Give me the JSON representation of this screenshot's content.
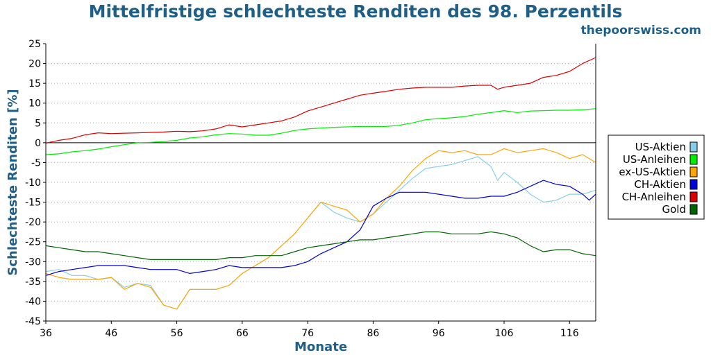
{
  "header": {
    "title": "Mittelfristige schlechteste Renditen des 98. Perzentils",
    "site": "thepoorswiss.com"
  },
  "chart_data": {
    "type": "line",
    "title": "Mittelfristige schlechteste Renditen des 98. Perzentils",
    "xlabel": "Monate",
    "ylabel": "Schlechteste Renditen [%]",
    "xlim": [
      36,
      120
    ],
    "ylim": [
      -45,
      25
    ],
    "x_ticks": [
      36,
      46,
      56,
      66,
      76,
      86,
      96,
      106,
      116
    ],
    "y_ticks": [
      25,
      20,
      15,
      10,
      5,
      0,
      -5,
      -10,
      -15,
      -20,
      -25,
      -30,
      -35,
      -40,
      -45
    ],
    "x_tick_labels": [
      "36",
      "46",
      "56",
      "66",
      "76",
      "86",
      "96",
      "106",
      "116"
    ],
    "y_tick_labels": [
      "25",
      "20",
      "15",
      "10",
      "5",
      "0",
      "-5",
      "-10",
      "-15",
      "-20",
      "-25",
      "-30",
      "-35",
      "-40",
      "-45"
    ],
    "grid": "horizontal dotted",
    "legend_position": "right",
    "series": [
      {
        "name": "US-Aktien",
        "color": "#87ceeb",
        "points": [
          [
            36,
            -32.5
          ],
          [
            38,
            -32
          ],
          [
            40,
            -33.5
          ],
          [
            42,
            -33.5
          ],
          [
            44,
            -34.5
          ],
          [
            46,
            -34
          ],
          [
            48,
            -36.5
          ],
          [
            50,
            -35.5
          ],
          [
            52,
            -36
          ],
          [
            54,
            -41
          ],
          [
            56,
            -42
          ],
          [
            58,
            -37
          ],
          [
            60,
            -37
          ],
          [
            62,
            -37
          ],
          [
            64,
            -36
          ],
          [
            66,
            -33
          ],
          [
            68,
            -31
          ],
          [
            70,
            -29
          ],
          [
            72,
            -26
          ],
          [
            74,
            -23
          ],
          [
            76,
            -19
          ],
          [
            78,
            -15
          ],
          [
            80,
            -17.5
          ],
          [
            82,
            -19
          ],
          [
            84,
            -20
          ],
          [
            86,
            -18
          ],
          [
            88,
            -15
          ],
          [
            90,
            -12
          ],
          [
            92,
            -9
          ],
          [
            94,
            -6.5
          ],
          [
            96,
            -6
          ],
          [
            98,
            -5.5
          ],
          [
            100,
            -4.5
          ],
          [
            102,
            -3.5
          ],
          [
            104,
            -6
          ],
          [
            105,
            -9.5
          ],
          [
            106,
            -7.5
          ],
          [
            108,
            -10
          ],
          [
            110,
            -13
          ],
          [
            112,
            -15
          ],
          [
            114,
            -14.5
          ],
          [
            116,
            -13
          ],
          [
            118,
            -13
          ],
          [
            120,
            -12
          ]
        ]
      },
      {
        "name": "US-Anleihen",
        "color": "#00ee00",
        "points": [
          [
            36,
            -3
          ],
          [
            38,
            -2.8
          ],
          [
            40,
            -2.3
          ],
          [
            42,
            -2
          ],
          [
            44,
            -1.6
          ],
          [
            46,
            -1
          ],
          [
            48,
            -0.5
          ],
          [
            50,
            0
          ],
          [
            52,
            0.1
          ],
          [
            54,
            0.3
          ],
          [
            56,
            0.6
          ],
          [
            58,
            1.2
          ],
          [
            60,
            1.5
          ],
          [
            62,
            2
          ],
          [
            64,
            2.3
          ],
          [
            66,
            2.2
          ],
          [
            68,
            1.9
          ],
          [
            70,
            1.9
          ],
          [
            72,
            2.4
          ],
          [
            74,
            3.1
          ],
          [
            76,
            3.5
          ],
          [
            78,
            3.7
          ],
          [
            80,
            3.9
          ],
          [
            82,
            4
          ],
          [
            84,
            4.1
          ],
          [
            86,
            4.1
          ],
          [
            88,
            4.1
          ],
          [
            90,
            4.4
          ],
          [
            92,
            5
          ],
          [
            94,
            5.8
          ],
          [
            96,
            6.1
          ],
          [
            98,
            6.3
          ],
          [
            100,
            6.6
          ],
          [
            102,
            7.2
          ],
          [
            104,
            7.6
          ],
          [
            106,
            8.1
          ],
          [
            108,
            7.6
          ],
          [
            110,
            8
          ],
          [
            112,
            8.1
          ],
          [
            114,
            8.2
          ],
          [
            116,
            8.2
          ],
          [
            118,
            8.3
          ],
          [
            120,
            8.6
          ]
        ]
      },
      {
        "name": "ex-US-Aktien",
        "color": "#ffa500",
        "points": [
          [
            36,
            -33
          ],
          [
            38,
            -34
          ],
          [
            40,
            -34.5
          ],
          [
            42,
            -34.5
          ],
          [
            44,
            -34.5
          ],
          [
            46,
            -34
          ],
          [
            48,
            -37
          ],
          [
            50,
            -35.5
          ],
          [
            52,
            -36.5
          ],
          [
            54,
            -41
          ],
          [
            56,
            -42
          ],
          [
            58,
            -37
          ],
          [
            60,
            -37
          ],
          [
            62,
            -37
          ],
          [
            64,
            -36
          ],
          [
            66,
            -33
          ],
          [
            68,
            -31
          ],
          [
            70,
            -29
          ],
          [
            72,
            -26
          ],
          [
            74,
            -23
          ],
          [
            76,
            -19
          ],
          [
            78,
            -15
          ],
          [
            80,
            -16
          ],
          [
            82,
            -17
          ],
          [
            84,
            -20
          ],
          [
            86,
            -18
          ],
          [
            88,
            -14
          ],
          [
            90,
            -11
          ],
          [
            92,
            -7
          ],
          [
            94,
            -4
          ],
          [
            96,
            -2
          ],
          [
            98,
            -2.5
          ],
          [
            100,
            -2
          ],
          [
            102,
            -3
          ],
          [
            104,
            -3
          ],
          [
            106,
            -1.5
          ],
          [
            108,
            -2.5
          ],
          [
            110,
            -2
          ],
          [
            112,
            -1.5
          ],
          [
            114,
            -2.5
          ],
          [
            116,
            -4
          ],
          [
            118,
            -3
          ],
          [
            120,
            -5
          ]
        ]
      },
      {
        "name": "CH-Aktien",
        "color": "#0000dd",
        "points": [
          [
            36,
            -33.5
          ],
          [
            38,
            -32.5
          ],
          [
            40,
            -32
          ],
          [
            42,
            -31.5
          ],
          [
            44,
            -31
          ],
          [
            46,
            -31
          ],
          [
            48,
            -31
          ],
          [
            50,
            -31.5
          ],
          [
            52,
            -32
          ],
          [
            54,
            -32
          ],
          [
            56,
            -32
          ],
          [
            58,
            -33
          ],
          [
            60,
            -32.5
          ],
          [
            62,
            -32
          ],
          [
            64,
            -31
          ],
          [
            66,
            -31.5
          ],
          [
            68,
            -31.5
          ],
          [
            70,
            -31.5
          ],
          [
            72,
            -31.5
          ],
          [
            74,
            -31
          ],
          [
            76,
            -30
          ],
          [
            78,
            -28
          ],
          [
            80,
            -26.5
          ],
          [
            82,
            -25
          ],
          [
            84,
            -22
          ],
          [
            86,
            -16
          ],
          [
            88,
            -14
          ],
          [
            90,
            -12.5
          ],
          [
            92,
            -12.5
          ],
          [
            94,
            -12.5
          ],
          [
            96,
            -13
          ],
          [
            98,
            -13.5
          ],
          [
            100,
            -14
          ],
          [
            102,
            -14
          ],
          [
            104,
            -13.5
          ],
          [
            106,
            -13.5
          ],
          [
            108,
            -12.5
          ],
          [
            110,
            -11
          ],
          [
            112,
            -9.5
          ],
          [
            114,
            -10.5
          ],
          [
            116,
            -11
          ],
          [
            118,
            -13
          ],
          [
            119,
            -14.5
          ],
          [
            120,
            -13
          ]
        ]
      },
      {
        "name": "CH-Anleihen",
        "color": "#dd0000",
        "points": [
          [
            36,
            -0.1
          ],
          [
            38,
            0.6
          ],
          [
            40,
            1.1
          ],
          [
            42,
            2
          ],
          [
            44,
            2.5
          ],
          [
            46,
            2.3
          ],
          [
            48,
            2.4
          ],
          [
            50,
            2.5
          ],
          [
            52,
            2.6
          ],
          [
            54,
            2.7
          ],
          [
            56,
            2.9
          ],
          [
            58,
            2.8
          ],
          [
            60,
            3
          ],
          [
            62,
            3.5
          ],
          [
            64,
            4.5
          ],
          [
            66,
            4
          ],
          [
            68,
            4.5
          ],
          [
            70,
            5
          ],
          [
            72,
            5.5
          ],
          [
            74,
            6.5
          ],
          [
            76,
            8
          ],
          [
            78,
            9
          ],
          [
            80,
            10
          ],
          [
            82,
            11
          ],
          [
            84,
            12
          ],
          [
            86,
            12.5
          ],
          [
            88,
            13
          ],
          [
            90,
            13.5
          ],
          [
            92,
            13.8
          ],
          [
            94,
            14
          ],
          [
            96,
            14
          ],
          [
            98,
            14
          ],
          [
            100,
            14.3
          ],
          [
            102,
            14.5
          ],
          [
            104,
            14.5
          ],
          [
            105,
            13.5
          ],
          [
            106,
            14
          ],
          [
            108,
            14.5
          ],
          [
            110,
            15
          ],
          [
            112,
            16.5
          ],
          [
            114,
            17
          ],
          [
            116,
            18
          ],
          [
            118,
            20
          ],
          [
            120,
            21.5
          ]
        ]
      },
      {
        "name": "Gold",
        "color": "#006400",
        "points": [
          [
            36,
            -26
          ],
          [
            38,
            -26.5
          ],
          [
            40,
            -27
          ],
          [
            42,
            -27.5
          ],
          [
            44,
            -27.5
          ],
          [
            46,
            -28
          ],
          [
            48,
            -28.5
          ],
          [
            50,
            -29
          ],
          [
            52,
            -29.5
          ],
          [
            54,
            -29.5
          ],
          [
            56,
            -29.5
          ],
          [
            58,
            -29.5
          ],
          [
            60,
            -29.5
          ],
          [
            62,
            -29.5
          ],
          [
            64,
            -29
          ],
          [
            66,
            -29
          ],
          [
            68,
            -28.5
          ],
          [
            70,
            -28.5
          ],
          [
            72,
            -28.5
          ],
          [
            74,
            -27.5
          ],
          [
            76,
            -26.5
          ],
          [
            78,
            -26
          ],
          [
            80,
            -25.5
          ],
          [
            82,
            -25
          ],
          [
            84,
            -24.5
          ],
          [
            86,
            -24.5
          ],
          [
            88,
            -24
          ],
          [
            90,
            -23.5
          ],
          [
            92,
            -23
          ],
          [
            94,
            -22.5
          ],
          [
            96,
            -22.5
          ],
          [
            98,
            -23
          ],
          [
            100,
            -23
          ],
          [
            102,
            -23
          ],
          [
            104,
            -22.5
          ],
          [
            106,
            -23
          ],
          [
            108,
            -24
          ],
          [
            110,
            -26
          ],
          [
            112,
            -27.5
          ],
          [
            114,
            -27
          ],
          [
            116,
            -27
          ],
          [
            118,
            -28
          ],
          [
            120,
            -28.5
          ]
        ]
      }
    ]
  }
}
